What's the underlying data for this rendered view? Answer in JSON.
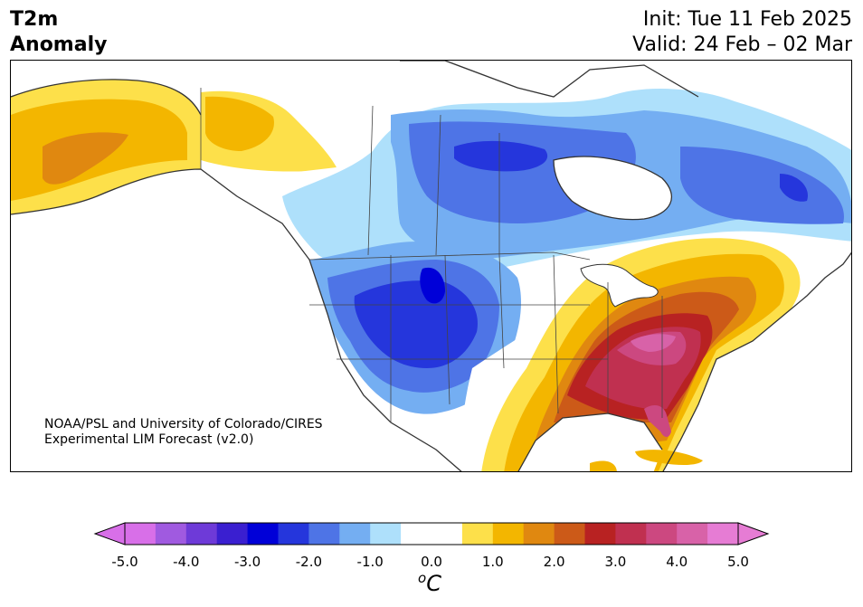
{
  "title_left": "T2m\nAnomaly",
  "title_right": "Init: Tue 11 Feb 2025\nValid: 24 Feb – 02 Mar",
  "credit": "NOAA/PSL and University of Colorado/CIRES\nExperimental LIM Forecast (v2.0)",
  "colorbar": {
    "unit_base": "C",
    "unit_super": "o",
    "tick_labels": [
      "-5.0",
      "-4.0",
      "-3.0",
      "-2.0",
      "-1.0",
      "0.0",
      "1.0",
      "2.0",
      "3.0",
      "4.0",
      "5.0"
    ],
    "colors": [
      "#d86fe8",
      "#a05ae0",
      "#6e3ad8",
      "#3a1fd0",
      "#0000d8",
      "#2536dc",
      "#4e74e6",
      "#74aef2",
      "#aee0fb",
      "#ffffff",
      "#ffffff",
      "#fde04a",
      "#f3b600",
      "#e08810",
      "#cc5a18",
      "#b82222",
      "#c03050",
      "#cc4880",
      "#d862a8",
      "#e67cd4"
    ],
    "under_color": "#d86fe8",
    "over_color": "#e67cd4"
  },
  "map": {
    "field": "T2m Anomaly",
    "cold_anomaly_colors": [
      "#aee0fb",
      "#74aef2",
      "#4e74e6",
      "#2536dc",
      "#0000d8"
    ],
    "warm_anomaly_colors": [
      "#fde04a",
      "#f3b600",
      "#e08810",
      "#cc5a18",
      "#b82222",
      "#c03050",
      "#cc4880",
      "#d862a8"
    ],
    "land_line_color": "#333333"
  }
}
